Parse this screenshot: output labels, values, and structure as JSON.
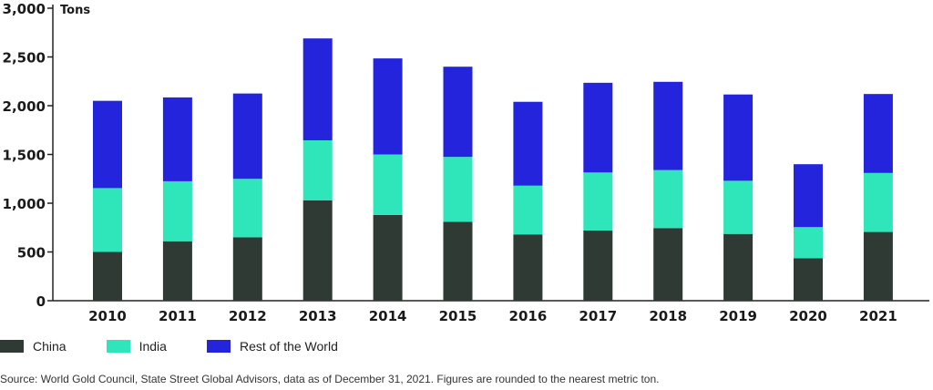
{
  "chart_data": {
    "type": "bar",
    "stacked": true,
    "ylabel": "Tons",
    "ylim": [
      0,
      3000
    ],
    "yticks": [
      "0",
      "500",
      "1,000",
      "1,500",
      "2,000",
      "2,500",
      "3,000"
    ],
    "ytick_values": [
      0,
      500,
      1000,
      1500,
      2000,
      2500,
      3000
    ],
    "categories": [
      "2010",
      "2011",
      "2012",
      "2013",
      "2014",
      "2015",
      "2016",
      "2017",
      "2018",
      "2019",
      "2020",
      "2021"
    ],
    "series": [
      {
        "name": "China",
        "color": "#2e3a33",
        "values": [
          500,
          610,
          650,
          1030,
          880,
          810,
          680,
          720,
          745,
          685,
          435,
          705
        ]
      },
      {
        "name": "India",
        "color": "#2ee6ba",
        "values": [
          655,
          615,
          600,
          615,
          620,
          665,
          500,
          595,
          595,
          545,
          320,
          605
        ]
      },
      {
        "name": "Rest of the World",
        "color": "#2424dd",
        "values": [
          895,
          860,
          875,
          1045,
          985,
          925,
          860,
          920,
          905,
          885,
          645,
          810
        ]
      }
    ],
    "grid": false,
    "legend_position": "bottom-left"
  },
  "source_note": "Source: World Gold Council, State Street Global Advisors, data as of December 31, 2021. Figures are rounded to the nearest metric ton."
}
